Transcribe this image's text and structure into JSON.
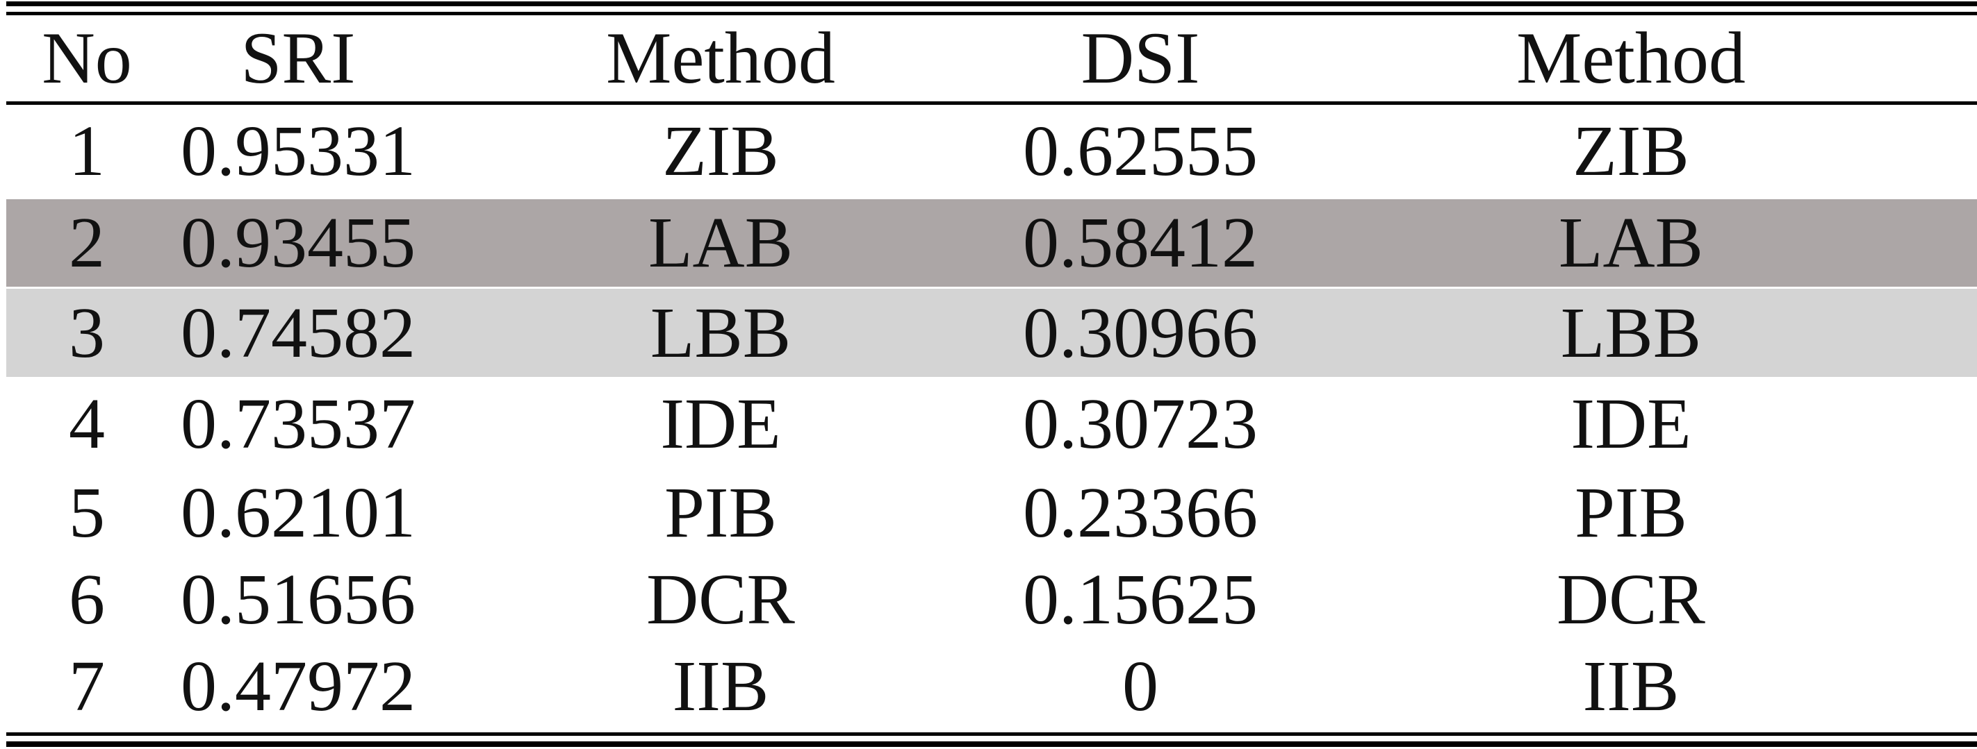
{
  "table": {
    "headers": [
      "No",
      "SRI",
      "Method",
      "DSI",
      "Method"
    ],
    "rows": [
      [
        "1",
        "0.95331",
        "ZIB",
        "0.62555",
        "ZIB"
      ],
      [
        "2",
        "0.93455",
        "LAB",
        "0.58412",
        "LAB"
      ],
      [
        "3",
        "0.74582",
        "LBB",
        "0.30966",
        "LBB"
      ],
      [
        "4",
        "0.73537",
        "IDE",
        "0.30723",
        "IDE"
      ],
      [
        "5",
        "0.62101",
        "PIB",
        "0.23366",
        "PIB"
      ],
      [
        "6",
        "0.51656",
        "DCR",
        "0.15625",
        "DCR"
      ],
      [
        "7",
        "0.47972",
        "IIB",
        "0",
        "IIB"
      ]
    ],
    "row_shading": [
      "none",
      "dark",
      "light",
      "none",
      "none",
      "none",
      "none"
    ],
    "colors": {
      "shade_dark": "#aca6a6",
      "shade_light": "#d4d4d4",
      "rule": "#000000",
      "text": "#111111"
    }
  }
}
